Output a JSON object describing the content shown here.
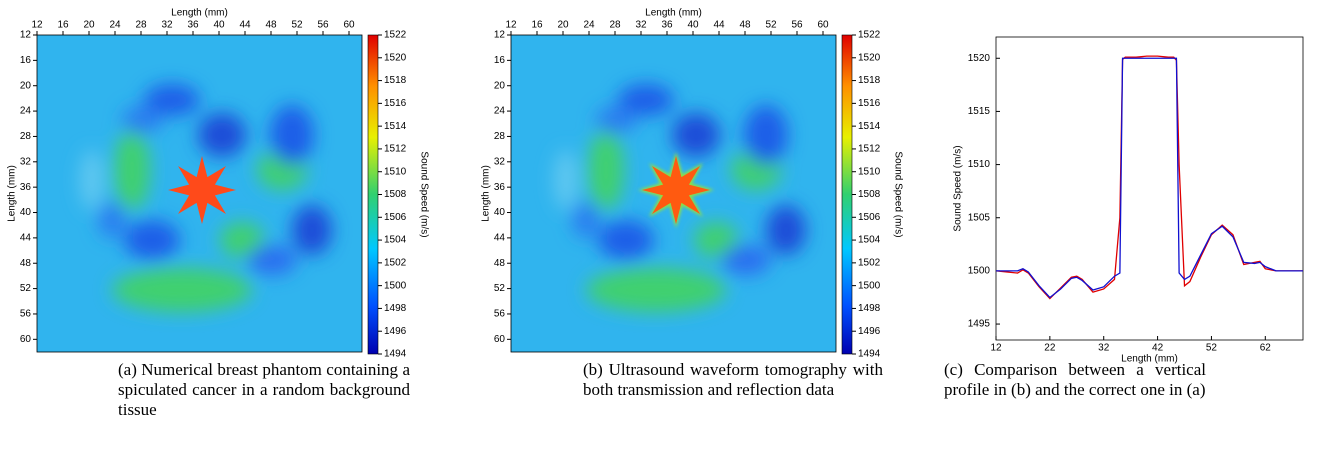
{
  "chart_data": [
    {
      "type": "heatmap",
      "caption": "(a) Numerical breast phantom containing a spiculated cancer in a random background tissue",
      "xlabel": "Length (mm)",
      "ylabel": "Length (mm)",
      "colorbar_label": "Sound Speed (m/s)",
      "xlim": [
        12,
        62
      ],
      "xticks": [
        12,
        16,
        20,
        24,
        28,
        32,
        36,
        40,
        44,
        48,
        52,
        56,
        60
      ],
      "ylim": [
        12,
        62
      ],
      "yticks": [
        12,
        16,
        20,
        24,
        28,
        32,
        36,
        40,
        44,
        48,
        52,
        56,
        60
      ],
      "clim": [
        1494,
        1522
      ],
      "cticks": [
        1494,
        1496,
        1498,
        1500,
        1502,
        1504,
        1506,
        1508,
        1510,
        1512,
        1514,
        1516,
        1518,
        1520,
        1522
      ]
    },
    {
      "type": "heatmap",
      "caption": "(b) Ultrasound waveform tomography with both transmission and reflection data",
      "xlabel": "Length (mm)",
      "ylabel": "Length (mm)",
      "colorbar_label": "Sound Speed (m/s)",
      "xlim": [
        12,
        62
      ],
      "xticks": [
        12,
        16,
        20,
        24,
        28,
        32,
        36,
        40,
        44,
        48,
        52,
        56,
        60
      ],
      "ylim": [
        12,
        62
      ],
      "yticks": [
        12,
        16,
        20,
        24,
        28,
        32,
        36,
        40,
        44,
        48,
        52,
        56,
        60
      ],
      "clim": [
        1494,
        1522
      ],
      "cticks": [
        1494,
        1496,
        1498,
        1500,
        1502,
        1504,
        1506,
        1508,
        1510,
        1512,
        1514,
        1516,
        1518,
        1520,
        1522
      ]
    },
    {
      "type": "line",
      "caption": "(c) Comparison between a vertical profile in (b) and the correct one in (a)",
      "xlabel": "Length (mm)",
      "ylabel": "Sound Speed (m/s)",
      "xlim": [
        12,
        69
      ],
      "xticks": [
        12,
        22,
        32,
        42,
        52,
        62
      ],
      "ylim": [
        1493.5,
        1522
      ],
      "yticks": [
        1495,
        1500,
        1505,
        1510,
        1515,
        1520
      ],
      "x": [
        12,
        14,
        16,
        17,
        18,
        20,
        22,
        24,
        26,
        27,
        28,
        30,
        32,
        34,
        35,
        35.5,
        36,
        38,
        40,
        42,
        44,
        45,
        45.5,
        46,
        47,
        48,
        50,
        52,
        54,
        56,
        58,
        60,
        61,
        62,
        64,
        66,
        69
      ],
      "series": [
        {
          "color": "#e00000",
          "values": [
            1500,
            1499.9,
            1499.8,
            1500.1,
            1499.8,
            1498.5,
            1497.4,
            1498.4,
            1499.4,
            1499.5,
            1499.2,
            1498.0,
            1498.3,
            1499.2,
            1505,
            1519.9,
            1520.1,
            1520.1,
            1520.2,
            1520.2,
            1520.1,
            1520.1,
            1519.8,
            1510,
            1498.6,
            1499,
            1501.3,
            1503.4,
            1504.3,
            1503.4,
            1500.6,
            1500.8,
            1500.9,
            1500.2,
            1500,
            1500,
            1500
          ]
        },
        {
          "color": "#1010d0",
          "values": [
            1500,
            1500,
            1500,
            1500.2,
            1499.9,
            1498.6,
            1497.5,
            1498.3,
            1499.3,
            1499.4,
            1499.1,
            1498.2,
            1498.5,
            1499.5,
            1499.8,
            1520,
            1520,
            1520,
            1520,
            1520,
            1520,
            1520,
            1520,
            1499.8,
            1499.2,
            1499.5,
            1501.5,
            1503.5,
            1504.2,
            1503.2,
            1500.8,
            1500.7,
            1500.8,
            1500.4,
            1500,
            1500,
            1500
          ]
        }
      ]
    }
  ]
}
